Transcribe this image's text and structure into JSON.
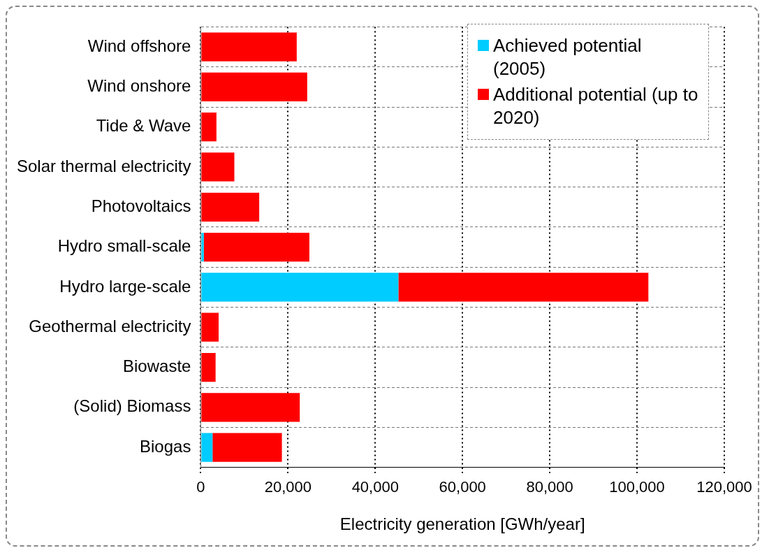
{
  "chart_data": {
    "type": "bar",
    "orientation": "horizontal",
    "stacked": true,
    "xlabel": "Electricity generation [GWh/year]",
    "categories": [
      "Wind offshore",
      "Wind onshore",
      "Tide & Wave",
      "Solar thermal electricity",
      "Photovoltaics",
      "Hydro small-scale",
      "Hydro large-scale",
      "Geothermal electricity",
      "Biowaste",
      "(Solid) Biomass",
      "Biogas"
    ],
    "series": [
      {
        "name": "Achieved potential (2005)",
        "color": "#00ccff",
        "values": [
          0,
          0,
          0,
          0,
          0,
          700,
          45300,
          0,
          0,
          0,
          2700
        ]
      },
      {
        "name": "Additional potential (up to 2020)",
        "color": "#ff0000",
        "values": [
          22000,
          24400,
          3600,
          7700,
          13400,
          24200,
          57300,
          4100,
          3400,
          22700,
          15900
        ]
      }
    ],
    "xlim": [
      0,
      120000
    ],
    "xticks": [
      0,
      {
        "value": 20000,
        "label": "20,000"
      },
      {
        "value": 40000,
        "label": "40,000"
      },
      {
        "value": 60000,
        "label": "60,000"
      },
      {
        "value": 80000,
        "label": "80,000"
      },
      {
        "value": 100000,
        "label": "100,000"
      },
      {
        "value": 120000,
        "label": "120,000"
      }
    ],
    "grid": true,
    "legend": "top right"
  }
}
